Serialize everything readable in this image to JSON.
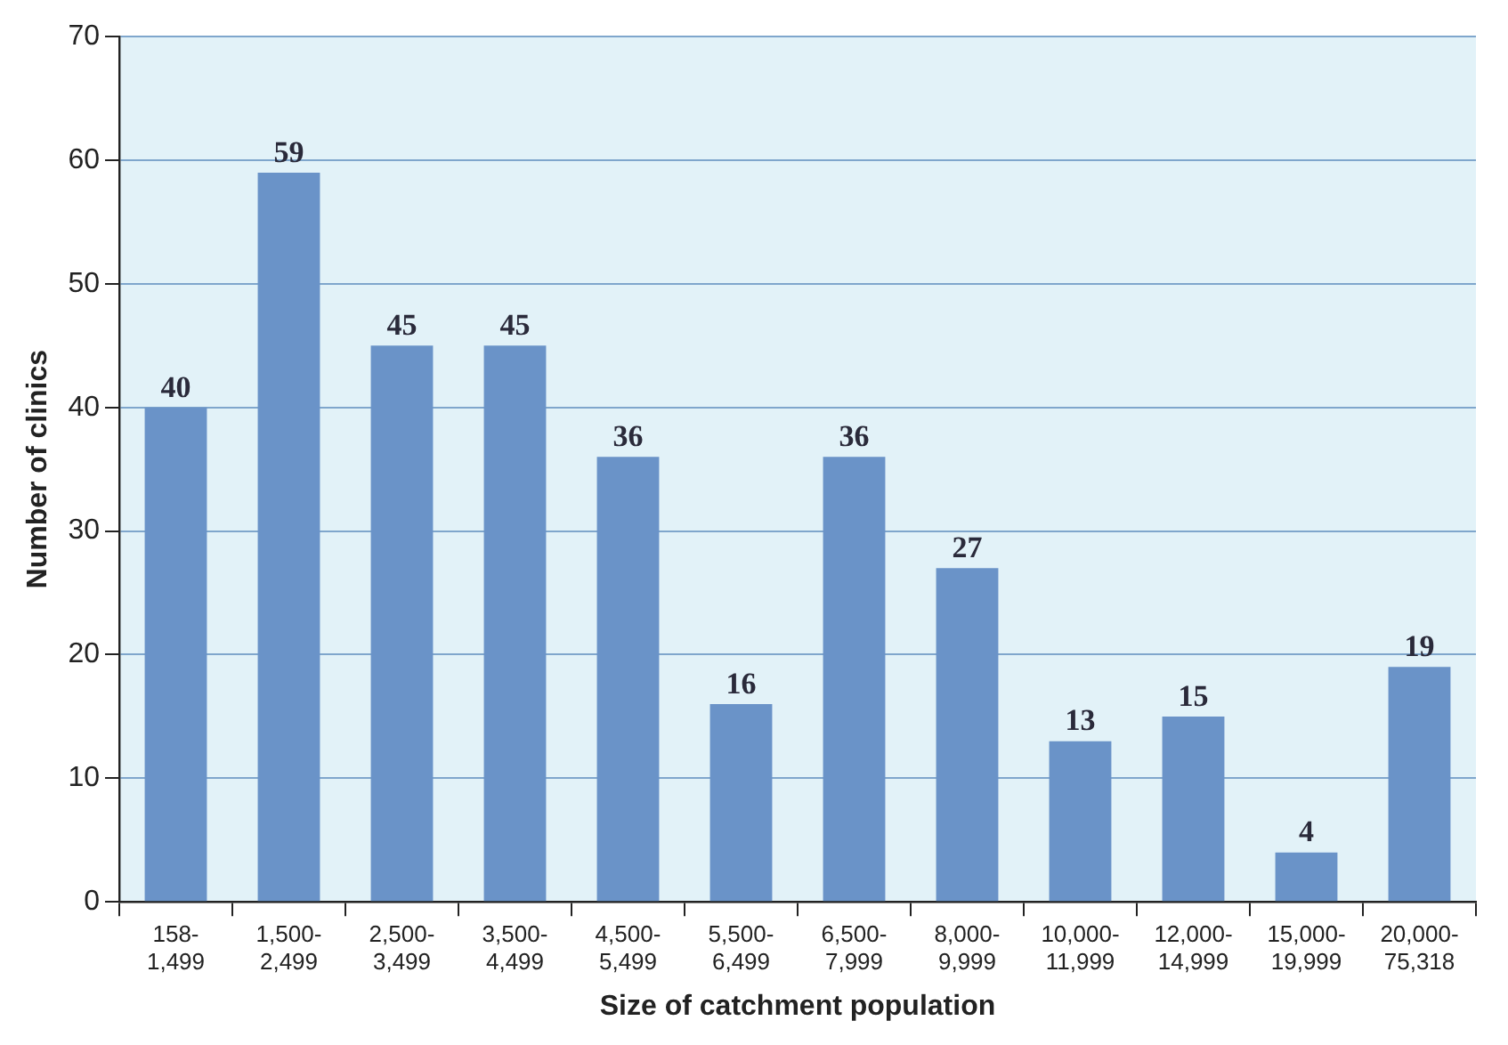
{
  "chart_data": {
    "type": "bar",
    "xlabel": "Size of catchment population",
    "ylabel": "Number of clinics",
    "categories": [
      "158-1,499",
      "1,500-2,499",
      "2,500-3,499",
      "3,500-4,499",
      "4,500-5,499",
      "5,500-6,499",
      "6,500-7,999",
      "8,000-9,999",
      "10,000-11,999",
      "12,000-14,999",
      "15,000-19,999",
      "20,000-75,318"
    ],
    "values": [
      40,
      59,
      45,
      45,
      36,
      16,
      36,
      27,
      13,
      15,
      4,
      19
    ],
    "color": "#6a93c8",
    "ylim": [
      0,
      70
    ],
    "yticks": [
      0,
      10,
      20,
      30,
      40,
      50,
      60,
      70
    ],
    "grid": "y",
    "data_labels": true,
    "legend": false
  }
}
